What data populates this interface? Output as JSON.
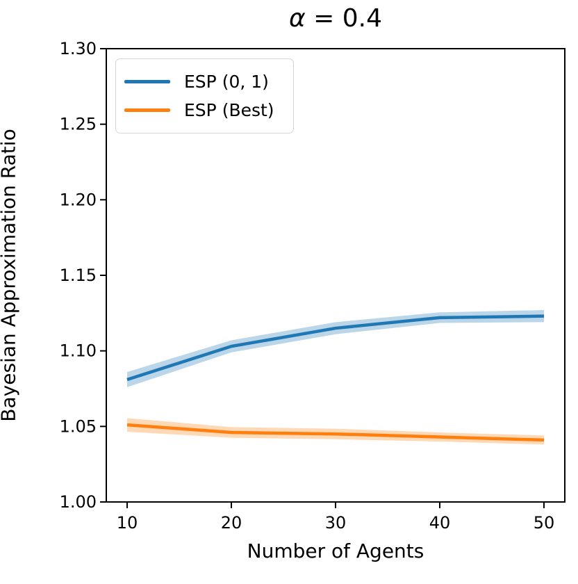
{
  "title": {
    "symbol": "α",
    "rest": " = 0.4"
  },
  "axes": {
    "xlabel": "Number of Agents",
    "ylabel": "Bayesian Approximation Ratio"
  },
  "legend": {
    "entries": [
      {
        "label": "ESP (0, 1)",
        "color": "#1f77b4"
      },
      {
        "label": "ESP (Best)",
        "color": "#ff7f0e"
      }
    ]
  },
  "chart_data": {
    "type": "line",
    "title": "α = 0.4",
    "xlabel": "Number of Agents",
    "ylabel": "Bayesian Approximation Ratio",
    "x": [
      10,
      20,
      30,
      40,
      50
    ],
    "series": [
      {
        "name": "ESP (0, 1)",
        "color": "#1f77b4",
        "values": [
          1.081,
          1.103,
          1.115,
          1.122,
          1.123
        ],
        "band_halfwidth": [
          0.005,
          0.004,
          0.004,
          0.0035,
          0.004
        ]
      },
      {
        "name": "ESP (Best)",
        "color": "#ff7f0e",
        "values": [
          1.051,
          1.046,
          1.045,
          1.043,
          1.041
        ],
        "band_halfwidth": [
          0.0045,
          0.0035,
          0.0035,
          0.003,
          0.003
        ]
      }
    ],
    "xticks": [
      10,
      20,
      30,
      40,
      50
    ],
    "yticks": [
      1.0,
      1.05,
      1.1,
      1.15,
      1.2,
      1.25,
      1.3
    ],
    "xlim": [
      8,
      52
    ],
    "ylim": [
      1.0,
      1.3
    ],
    "band_alpha": 0.3,
    "grid": false,
    "legend_position": "upper left",
    "spine_color": "#000000",
    "tick_label_format_y_decimals": 2
  }
}
